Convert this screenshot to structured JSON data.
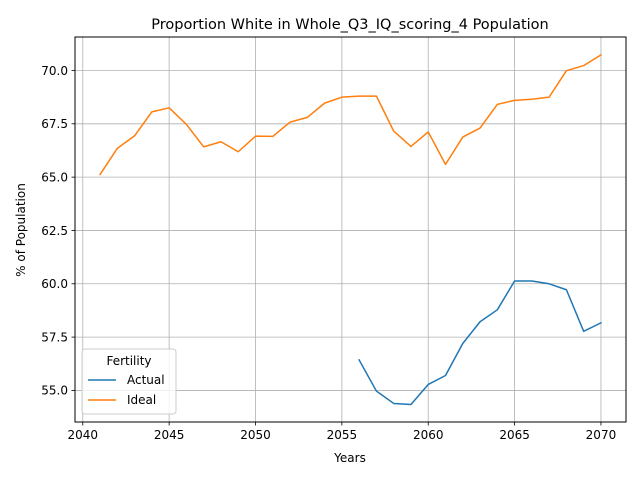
{
  "chart_data": {
    "type": "line",
    "title": "Proportion White in Whole_Q3_IQ_scoring_4 Population",
    "xlabel": "Years",
    "ylabel": "% of Population",
    "xlim": [
      2039.55,
      2071.45
    ],
    "ylim": [
      53.52,
      71.57
    ],
    "xticks": [
      2040,
      2045,
      2050,
      2055,
      2060,
      2065,
      2070
    ],
    "xtick_labels": [
      "2040",
      "2045",
      "2050",
      "2055",
      "2060",
      "2065",
      "2070"
    ],
    "yticks": [
      55.0,
      57.5,
      60.0,
      62.5,
      65.0,
      67.5,
      70.0
    ],
    "ytick_labels": [
      "55.0",
      "57.5",
      "60.0",
      "62.5",
      "65.0",
      "67.5",
      "70.0"
    ],
    "grid": true,
    "legend": {
      "title": "Fertility",
      "position": "lower-left"
    },
    "series": [
      {
        "name": "Actual",
        "color": "#1f77b4",
        "x": [
          2056,
          2057,
          2058,
          2059,
          2060,
          2061,
          2062,
          2063,
          2064,
          2065,
          2066,
          2067,
          2068,
          2069,
          2070
        ],
        "y": [
          56.43,
          54.97,
          54.39,
          54.34,
          55.28,
          55.7,
          57.2,
          58.22,
          58.78,
          60.13,
          60.13,
          60.0,
          59.72,
          57.77,
          58.17
        ]
      },
      {
        "name": "Ideal",
        "color": "#ff7f0e",
        "x": [
          2041,
          2042,
          2043,
          2044,
          2045,
          2046,
          2047,
          2048,
          2049,
          2050,
          2051,
          2052,
          2053,
          2054,
          2055,
          2056,
          2057,
          2058,
          2059,
          2060,
          2061,
          2062,
          2063,
          2064,
          2065,
          2066,
          2067,
          2068,
          2069,
          2070
        ],
        "y": [
          65.12,
          66.35,
          66.94,
          68.06,
          68.25,
          67.47,
          66.42,
          66.66,
          66.19,
          66.92,
          66.91,
          67.58,
          67.8,
          68.47,
          68.75,
          68.8,
          68.8,
          67.16,
          66.44,
          67.12,
          65.6,
          66.88,
          67.3,
          68.41,
          68.6,
          68.65,
          68.75,
          69.99,
          70.23,
          70.73
        ]
      }
    ]
  }
}
